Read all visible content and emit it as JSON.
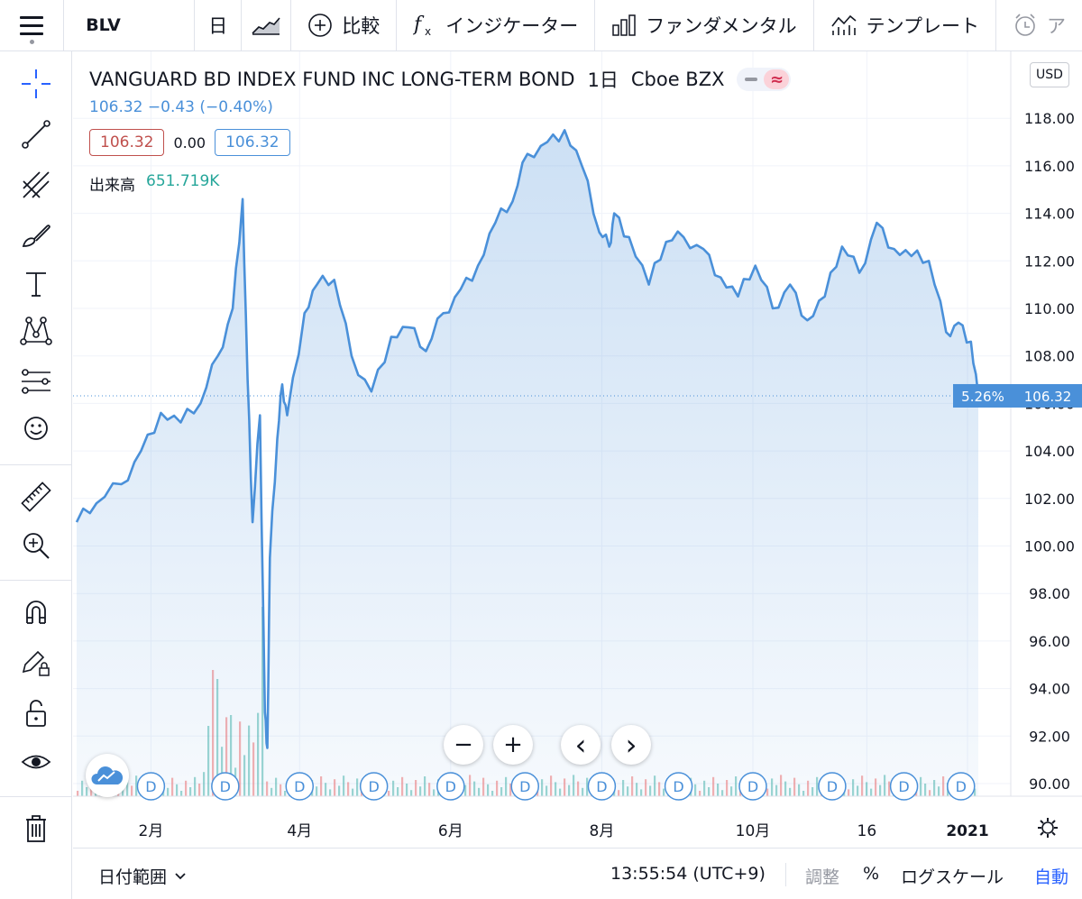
{
  "toolbar": {
    "symbol": "BLV",
    "interval": "日",
    "compare": "比較",
    "indicators": "インジケーター",
    "fundamentals": "ファンダメンタル",
    "templates": "テンプレート",
    "alert": "ア"
  },
  "legend": {
    "title": "VANGUARD BD INDEX FUND INC LONG-TERM BOND",
    "interval": "1日",
    "exchange": "Cboe BZX",
    "change": "106.32 −0.43 (−0.40%)",
    "bid": "106.32",
    "spread": "0.00",
    "ask": "106.32",
    "volume_label": "出来高",
    "volume_value": "651.719K",
    "mode_icon": "≈"
  },
  "currency": "USD",
  "price_badge": {
    "pct": "5.26%",
    "price": "106.32"
  },
  "controls": {
    "zoom_out": "−",
    "zoom_in": "+",
    "scroll_left": "‹",
    "scroll_right": "›"
  },
  "dividend_marker": "D",
  "bottom": {
    "range": "日付範囲",
    "time": "13:55:54 (UTC+9)",
    "adjust": "調整",
    "percent": "%",
    "log": "ログスケール",
    "auto": "自動"
  },
  "colors": {
    "line": "#4a90d9",
    "up": "#26a69a",
    "down": "#ef5350",
    "accent": "#2962ff"
  },
  "chart_data": {
    "type": "area",
    "ylim": [
      89,
      118
    ],
    "y_ticks": [
      "118.00",
      "116.00",
      "114.00",
      "112.00",
      "110.00",
      "108.00",
      "106.00",
      "104.00",
      "102.00",
      "100.00",
      "98.00",
      "96.00",
      "94.00",
      "92.00",
      "90.00"
    ],
    "x_ticks": [
      "2月",
      "4月",
      "6月",
      "8月",
      "10月",
      "16",
      "2021"
    ],
    "last_price": 106.32,
    "series": [
      {
        "x": [
          "2020-01-02",
          "2020-01-10",
          "2020-01-20",
          "2020-01-28",
          "2020-02-05",
          "2020-02-13",
          "2020-02-21",
          "2020-02-28",
          "2020-03-05",
          "2020-03-09",
          "2020-03-11",
          "2020-03-13",
          "2020-03-16",
          "2020-03-18",
          "2020-03-19",
          "2020-03-20",
          "2020-03-23",
          "2020-03-25",
          "2020-03-27",
          "2020-04-03",
          "2020-04-08",
          "2020-04-15",
          "2020-04-22",
          "2020-04-30",
          "2020-05-08",
          "2020-05-15",
          "2020-05-22",
          "2020-05-29",
          "2020-06-05",
          "2020-06-12",
          "2020-06-19",
          "2020-06-26",
          "2020-07-02",
          "2020-07-10",
          "2020-07-17",
          "2020-07-24",
          "2020-07-31",
          "2020-08-04",
          "2020-08-06",
          "2020-08-12",
          "2020-08-20",
          "2020-08-27",
          "2020-09-03",
          "2020-09-11",
          "2020-09-18",
          "2020-09-25",
          "2020-10-02",
          "2020-10-09",
          "2020-10-16",
          "2020-10-23",
          "2020-10-30",
          "2020-11-06",
          "2020-11-13",
          "2020-11-20",
          "2020-11-27",
          "2020-12-04",
          "2020-12-11",
          "2020-12-18",
          "2020-12-23",
          "2020-12-28",
          "2020-12-31"
        ],
        "values": [
          101.0,
          101.8,
          102.6,
          104.0,
          105.6,
          105.2,
          106.0,
          108.0,
          110.0,
          114.6,
          107.0,
          101.0,
          105.5,
          93.0,
          91.5,
          99.5,
          104.5,
          106.8,
          105.5,
          109.8,
          111.0,
          111.2,
          108.0,
          106.5,
          108.8,
          109.2,
          108.2,
          109.8,
          110.8,
          111.8,
          113.6,
          114.5,
          116.5,
          117.0,
          117.5,
          116.0,
          113.2,
          112.6,
          114.0,
          113.0,
          111.0,
          112.8,
          113.0,
          112.5,
          111.3,
          110.5,
          111.8,
          110.0,
          111.0,
          109.5,
          110.5,
          112.6,
          111.5,
          113.6,
          112.5,
          112.2,
          112.0,
          109.0,
          109.4,
          108.6,
          106.32
        ]
      }
    ],
    "volume": {
      "max_label": "651.719K"
    }
  }
}
